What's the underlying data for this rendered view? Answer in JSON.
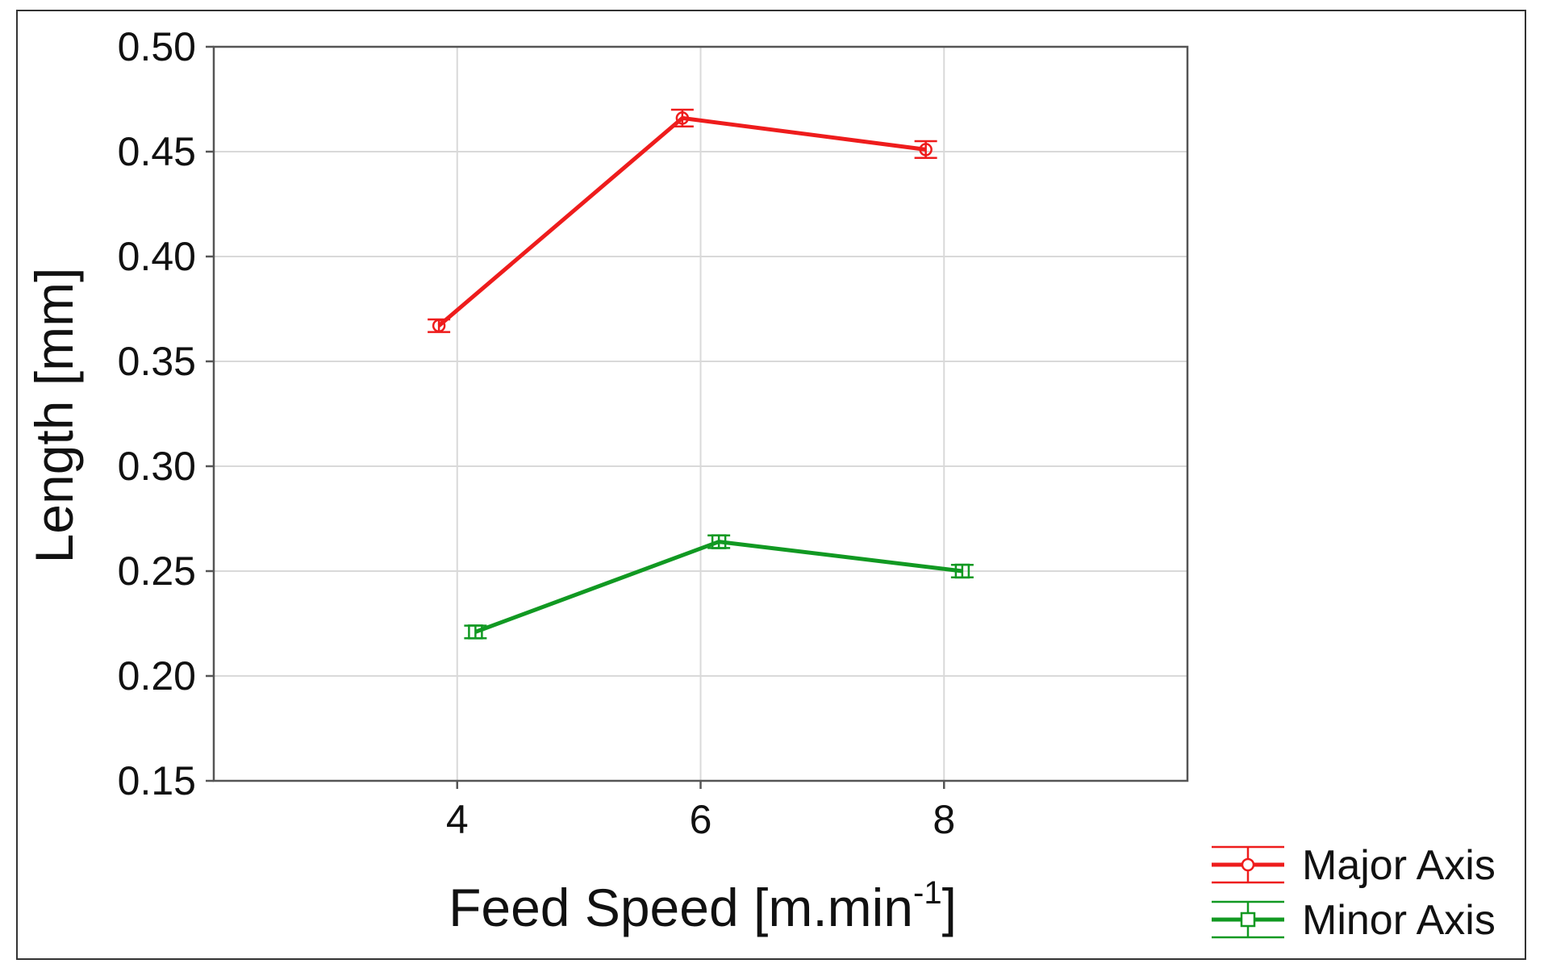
{
  "chart_data": {
    "type": "line",
    "title": "",
    "xlabel": "Feed Speed [m.min",
    "xlabel_superscript": "-1",
    "xlabel_suffix": "]",
    "ylabel": "Length [mm]",
    "xlim": [
      2,
      10
    ],
    "ylim": [
      0.15,
      0.5
    ],
    "xticks": [
      4,
      6,
      8
    ],
    "xtick_labels": [
      "4",
      "6",
      "8"
    ],
    "yticks": [
      0.15,
      0.2,
      0.25,
      0.3,
      0.35,
      0.4,
      0.45,
      0.5
    ],
    "ytick_labels": [
      "0.15",
      "0.20",
      "0.25",
      "0.30",
      "0.35",
      "0.40",
      "0.45",
      "0.50"
    ],
    "grid": true,
    "legend_position": "bottom-right outside",
    "series": [
      {
        "name": "Major Axis",
        "color": "#ee1c1c",
        "marker": "circle",
        "x": [
          3.85,
          5.85,
          7.85
        ],
        "y": [
          0.367,
          0.466,
          0.451
        ],
        "error": [
          0.003,
          0.004,
          0.004
        ]
      },
      {
        "name": "Minor Axis",
        "color": "#119922",
        "marker": "square",
        "x": [
          4.15,
          6.15,
          8.15
        ],
        "y": [
          0.221,
          0.264,
          0.25
        ],
        "error": [
          0.003,
          0.003,
          0.003
        ]
      }
    ]
  }
}
